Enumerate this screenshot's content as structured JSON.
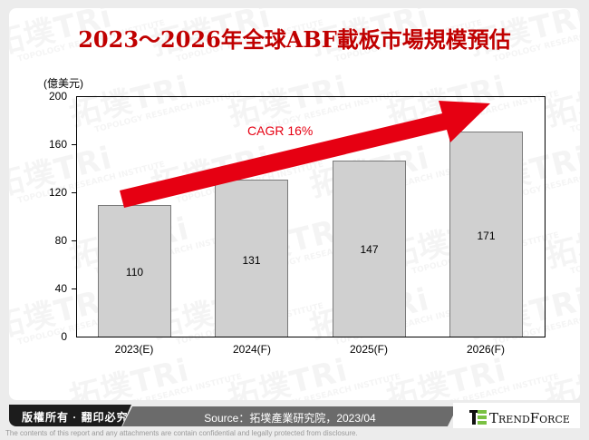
{
  "title": "2023～2026年全球ABF載板市場規模預估",
  "chart_data": {
    "type": "bar",
    "title": "2023～2026年全球ABF載板市場規模預估",
    "xlabel": "",
    "ylabel": "(億美元)",
    "categories": [
      "2023(E)",
      "2024(F)",
      "2025(F)",
      "2026(F)"
    ],
    "values": [
      110,
      131,
      147,
      171
    ],
    "ylim": [
      0,
      200
    ],
    "yticks": [
      0,
      40,
      80,
      120,
      160,
      200
    ],
    "grid": false,
    "legend": null,
    "bar_color": "#d0d0d0",
    "annotations": [
      {
        "type": "arrow",
        "text": "CAGR 16%",
        "color": "#e60012"
      }
    ]
  },
  "axis": {
    "unit_label": "(億美元)",
    "yticks": [
      "200",
      "160",
      "120",
      "80",
      "40",
      "0"
    ]
  },
  "annotation": {
    "cagr_label": "CAGR 16%",
    "color": "#e60012"
  },
  "footer": {
    "copyright": "版權所有 · 翻印必究",
    "source": "Source：拓墣產業研究院，2023/04",
    "logo_text": "TrendForce",
    "disclaimer": "The contents of this report and any attachments are contain confidential and legally protected from disclosure."
  },
  "watermark": {
    "brand": "拓墣TRi",
    "tagline": "TOPOLOGY RESEARCH INSTITUTE"
  },
  "colors": {
    "title": "#c00000",
    "arrow": "#e60012",
    "bar_fill": "#d0d0d0",
    "bar_border": "#7a7a7a",
    "copyright_bg": "#1c1c1c",
    "source_bg": "#6b6b6b",
    "logo_green": "#7ac143"
  }
}
